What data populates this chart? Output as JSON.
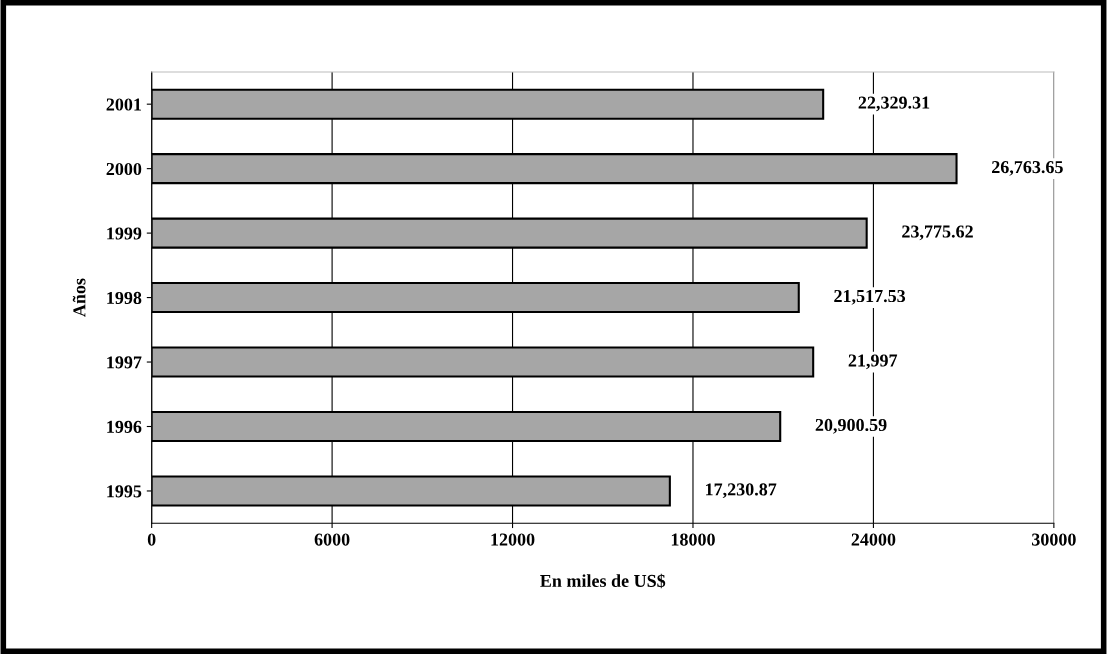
{
  "chart_data": {
    "type": "bar",
    "orientation": "horizontal",
    "categories": [
      "2001",
      "2000",
      "1999",
      "1998",
      "1997",
      "1996",
      "1995"
    ],
    "values": [
      22329.31,
      26763.65,
      23775.62,
      21517.53,
      21997,
      20900.59,
      17230.87
    ],
    "value_labels": [
      "22,329.31",
      "26,763.65",
      "23,775.62",
      "21,517.53",
      "21,997",
      "20,900.59",
      "17,230.87"
    ],
    "color": "#a6a6a6",
    "xlim": [
      0,
      30000
    ],
    "xticks": [
      0,
      6000,
      12000,
      18000,
      24000,
      30000
    ],
    "grid": "x",
    "xlabel": "En miles de US$",
    "ylabel": "Años"
  }
}
